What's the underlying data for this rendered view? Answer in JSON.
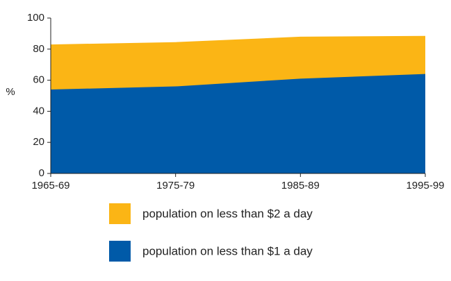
{
  "chart_data": {
    "type": "area",
    "y_label": "%",
    "categories": [
      "1965-69",
      "1975-79",
      "1985-89",
      "1995-99"
    ],
    "series": [
      {
        "name": "population on less than $2 a day",
        "color": "#fbb515",
        "values": [
          83,
          84.5,
          88,
          88.5
        ]
      },
      {
        "name": "population on less than $1 a day",
        "color": "#005aa8",
        "values": [
          54,
          56,
          61,
          64
        ]
      }
    ],
    "ylim": [
      0,
      100
    ],
    "yticks": [
      0,
      20,
      40,
      60,
      80,
      100
    ]
  }
}
